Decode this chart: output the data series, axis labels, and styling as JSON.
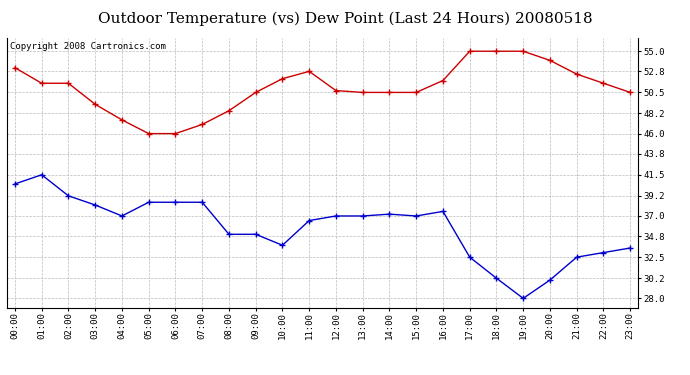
{
  "title": "Outdoor Temperature (vs) Dew Point (Last 24 Hours) 20080518",
  "copyright_text": "Copyright 2008 Cartronics.com",
  "x_labels": [
    "00:00",
    "01:00",
    "02:00",
    "03:00",
    "04:00",
    "05:00",
    "06:00",
    "07:00",
    "08:00",
    "09:00",
    "10:00",
    "11:00",
    "12:00",
    "13:00",
    "14:00",
    "15:00",
    "16:00",
    "17:00",
    "18:00",
    "19:00",
    "20:00",
    "21:00",
    "22:00",
    "23:00"
  ],
  "temp_data": [
    53.2,
    51.5,
    51.5,
    49.2,
    47.5,
    46.0,
    46.0,
    47.0,
    48.5,
    50.5,
    52.0,
    52.8,
    50.7,
    50.5,
    50.5,
    50.5,
    51.8,
    55.0,
    55.0,
    55.0,
    54.0,
    52.5,
    51.5,
    50.5
  ],
  "dew_data": [
    40.5,
    41.5,
    39.2,
    38.2,
    37.0,
    38.5,
    38.5,
    38.5,
    35.0,
    35.0,
    33.8,
    36.5,
    37.0,
    37.0,
    37.2,
    37.0,
    37.5,
    32.5,
    30.2,
    28.0,
    30.0,
    32.5,
    33.0,
    33.5
  ],
  "temp_color": "#cc0000",
  "dew_color": "#0000cc",
  "yticks": [
    28.0,
    30.2,
    32.5,
    34.8,
    37.0,
    39.2,
    41.5,
    43.8,
    46.0,
    48.2,
    50.5,
    52.8,
    55.0
  ],
  "ylim": [
    27.0,
    56.5
  ],
  "bg_color": "#ffffff",
  "grid_color": "#bbbbbb",
  "title_fontsize": 11,
  "tick_fontsize": 6.5,
  "copyright_fontsize": 6.5
}
